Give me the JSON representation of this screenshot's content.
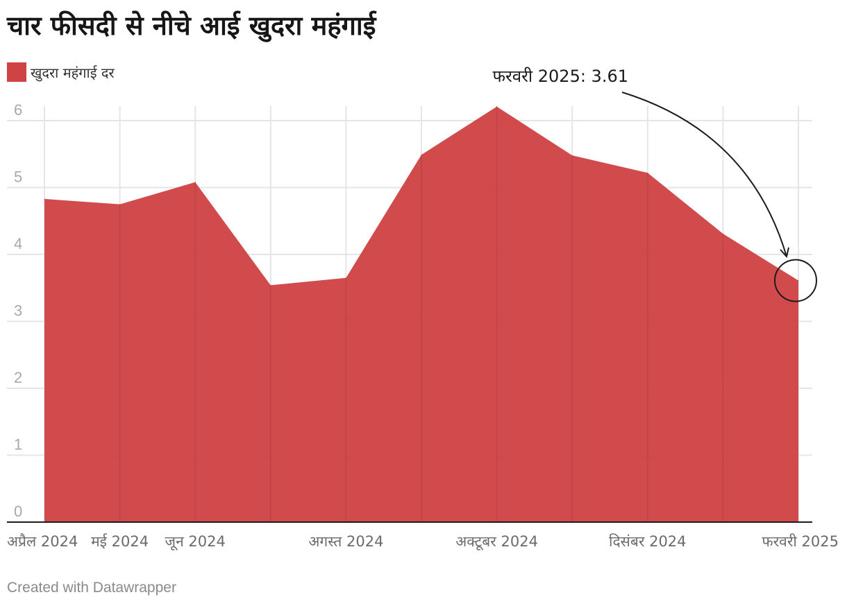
{
  "title": "चार फीसदी से नीचे आई खुदरा महंगाई",
  "legend": {
    "label": "खुदरा महंगाई दर",
    "color": "#cf4345"
  },
  "footer": "Created with Datawrapper",
  "colors": {
    "area": "#cf4345",
    "grid": "#e5e5e5",
    "axis": "#1b1b1b",
    "tick_text": "#a8a8a8",
    "x_text": "#6b6b6b",
    "annotation": "#1b1b1b"
  },
  "chart_data": {
    "type": "area",
    "title": "चार फीसदी से नीचे आई खुदरा महंगाई",
    "series": [
      {
        "name": "खुदरा महंगाई दर",
        "values": [
          4.83,
          4.75,
          5.08,
          3.54,
          3.65,
          5.49,
          6.21,
          5.48,
          5.22,
          4.31,
          3.61
        ]
      }
    ],
    "x_count": 11,
    "x_ticks": [
      {
        "index": 0,
        "label": "अप्रैल 2024"
      },
      {
        "index": 1,
        "label": "मई 2024"
      },
      {
        "index": 2,
        "label": "जून 2024"
      },
      {
        "index": 4,
        "label": "अगस्त 2024"
      },
      {
        "index": 6,
        "label": "अक्टूबर 2024"
      },
      {
        "index": 8,
        "label": "दिसंबर 2024"
      },
      {
        "index": 10,
        "label": "फरवरी 2025"
      }
    ],
    "y_ticks": [
      0,
      1,
      2,
      3,
      4,
      5,
      6
    ],
    "ylim": [
      0,
      6
    ],
    "xlabel": "",
    "ylabel": "",
    "grid": true,
    "annotation": {
      "text": "फरवरी 2025: 3.61",
      "index": 10,
      "value": 3.61
    }
  }
}
